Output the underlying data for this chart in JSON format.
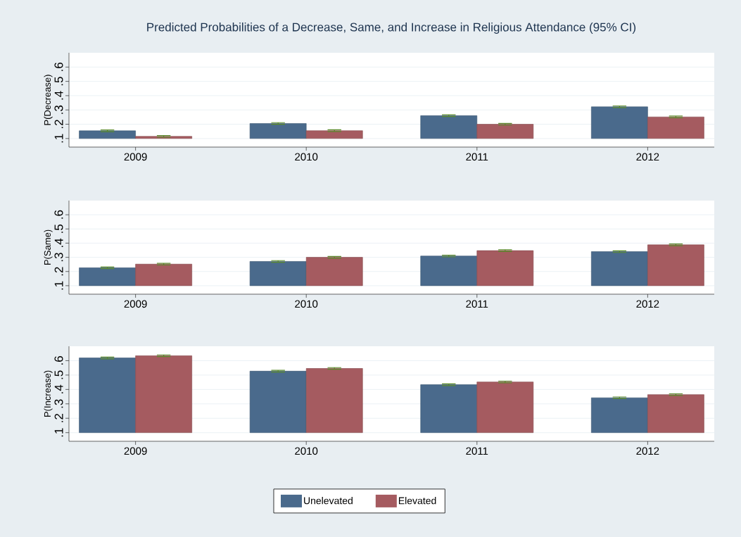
{
  "chart_data": [
    {
      "type": "bar",
      "title": "Predicted Probabilities of a Decrease, Same, and Increase in Religious Attendance (95% CI)",
      "ylabel": "P(Decrease)",
      "categories": [
        "2009",
        "2010",
        "2011",
        "2012"
      ],
      "ylim": [
        0.04,
        0.7
      ],
      "yticks": [
        {
          "value": 0.1,
          "label": ".1"
        },
        {
          "value": 0.2,
          "label": ".2"
        },
        {
          "value": 0.3,
          "label": ".3"
        },
        {
          "value": 0.4,
          "label": ".4"
        },
        {
          "value": 0.5,
          "label": ".5"
        },
        {
          "value": 0.6,
          "label": ".6"
        }
      ],
      "grid": "y",
      "series": [
        {
          "color": "#4a6a8c",
          "base": [
            0.1,
            0.1,
            0.1,
            0.1
          ],
          "values": [
            0.054,
            0.105,
            0.16,
            0.222
          ],
          "errors": [
            0.006,
            0.006,
            0.006,
            0.006
          ]
        },
        {
          "color": "#a55b60",
          "base": [
            0.1,
            0.1,
            0.1,
            0.1
          ],
          "values": [
            0.015,
            0.055,
            0.1,
            0.151
          ],
          "errors": [
            0.006,
            0.006,
            0.006,
            0.006
          ]
        }
      ]
    },
    {
      "type": "bar",
      "ylabel": "P(Same)",
      "categories": [
        "2009",
        "2010",
        "2011",
        "2012"
      ],
      "ylim": [
        0.04,
        0.7
      ],
      "yticks": [
        {
          "value": 0.1,
          "label": ".1"
        },
        {
          "value": 0.2,
          "label": ".2"
        },
        {
          "value": 0.3,
          "label": ".3"
        },
        {
          "value": 0.4,
          "label": ".4"
        },
        {
          "value": 0.5,
          "label": ".5"
        },
        {
          "value": 0.6,
          "label": ".6"
        }
      ],
      "grid": "y",
      "series": [
        {
          "color": "#4a6a8c",
          "base": [
            0.1,
            0.1,
            0.1,
            0.1
          ],
          "values": [
            0.126,
            0.171,
            0.209,
            0.24
          ],
          "errors": [
            0.006,
            0.006,
            0.006,
            0.006
          ]
        },
        {
          "color": "#a55b60",
          "base": [
            0.1,
            0.1,
            0.1,
            0.1
          ],
          "values": [
            0.152,
            0.2,
            0.247,
            0.288
          ],
          "errors": [
            0.006,
            0.006,
            0.006,
            0.006
          ]
        }
      ]
    },
    {
      "type": "bar",
      "ylabel": "P(Increase)",
      "categories": [
        "2009",
        "2010",
        "2011",
        "2012"
      ],
      "ylim": [
        0.04,
        0.7
      ],
      "yticks": [
        {
          "value": 0.1,
          "label": ".1"
        },
        {
          "value": 0.2,
          "label": ".2"
        },
        {
          "value": 0.3,
          "label": ".3"
        },
        {
          "value": 0.4,
          "label": ".4"
        },
        {
          "value": 0.5,
          "label": ".5"
        },
        {
          "value": 0.6,
          "label": ".6"
        }
      ],
      "grid": "y",
      "legend": "bottom",
      "series": [
        {
          "name": "Unelevated",
          "color": "#4a6a8c",
          "base": [
            0.1,
            0.1,
            0.1,
            0.1
          ],
          "values": [
            0.519,
            0.427,
            0.333,
            0.242
          ],
          "errors": [
            0.006,
            0.006,
            0.006,
            0.006
          ]
        },
        {
          "name": "Elevated",
          "color": "#a55b60",
          "base": [
            0.1,
            0.1,
            0.1,
            0.1
          ],
          "values": [
            0.534,
            0.446,
            0.352,
            0.264
          ],
          "errors": [
            0.006,
            0.006,
            0.006,
            0.006
          ]
        }
      ]
    }
  ]
}
